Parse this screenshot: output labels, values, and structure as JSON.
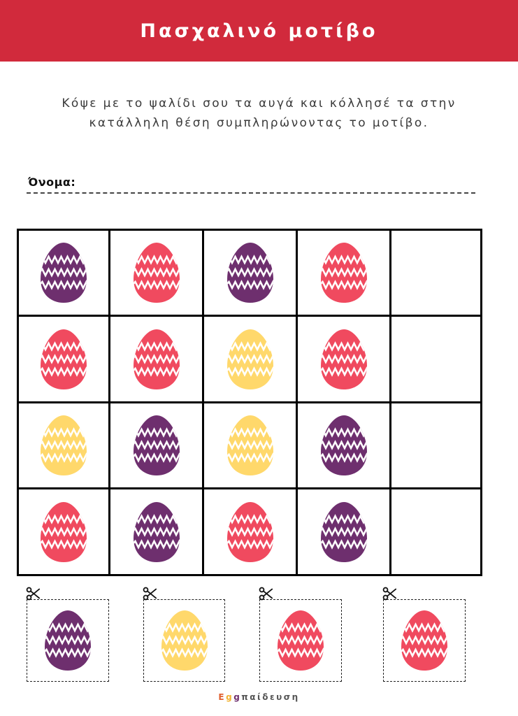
{
  "title": "Πασχαλινό μοτίβο",
  "instructions": {
    "line1": "Κόψε με το ψαλίδι σου τα αυγά και κόλλησέ τα στην",
    "line2": "κατάλληλη θέση συμπληρώνοντας το μοτίβο."
  },
  "name_label": "Όνομα:",
  "colors": {
    "header": "#d12a3c",
    "purple": "#6e2f6e",
    "red": "#f04a5f",
    "yellow": "#ffd86b"
  },
  "grid": [
    [
      "purple",
      "red",
      "purple",
      "red",
      "empty"
    ],
    [
      "red",
      "red",
      "yellow",
      "red",
      "empty"
    ],
    [
      "yellow",
      "purple",
      "yellow",
      "purple",
      "empty"
    ],
    [
      "red",
      "purple",
      "red",
      "purple",
      "empty"
    ]
  ],
  "cutouts": [
    "purple",
    "yellow",
    "red",
    "red"
  ],
  "icons": {
    "cut": "scissors-icon",
    "egg": "easter-egg-icon"
  },
  "footer": {
    "brand_prefix": "Egg",
    "brand_suffix": "παίδευση",
    "prefix_colors": [
      "#e06030",
      "#f2b230",
      "#6e2f6e"
    ],
    "suffix_color": "#555555"
  }
}
